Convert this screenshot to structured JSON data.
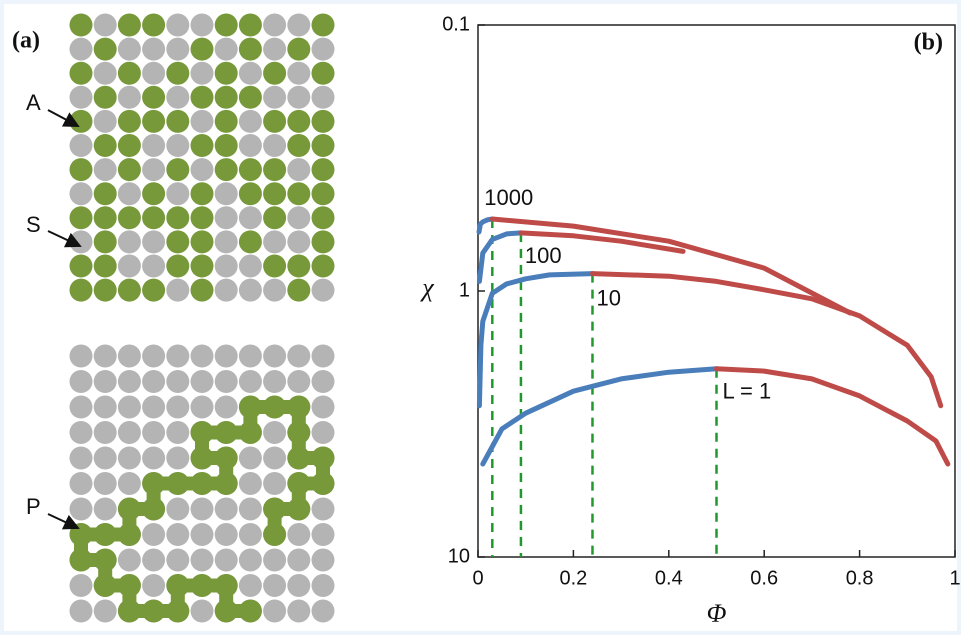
{
  "panel_a": {
    "label": "(a)",
    "markers": [
      "A",
      "S",
      "P"
    ]
  },
  "chart_data": {
    "type": "line",
    "panel_label": "(b)",
    "x_label": "Φ",
    "y_label": "χ",
    "xlim": [
      0,
      1
    ],
    "xticks": [
      0,
      0.2,
      0.4,
      0.6,
      0.8,
      1
    ],
    "ylim": [
      0.1,
      10
    ],
    "yticks": [
      0.1,
      1,
      10
    ],
    "y_scale": "log",
    "y_inverted": true,
    "critical_line_color": "#1f9a2a",
    "curves": [
      {
        "label": "1000",
        "critical": 0.03,
        "branches": [
          {
            "color": "#4a7ebb",
            "x": [
              0.002,
              0.005,
              0.01,
              0.02,
              0.03
            ],
            "values": [
              0.6,
              0.56,
              0.55,
              0.54,
              0.536
            ]
          },
          {
            "color": "#be4b48",
            "x": [
              0.03,
              0.2,
              0.4,
              0.6,
              0.78
            ],
            "values": [
              0.536,
              0.57,
              0.65,
              0.82,
              1.21
            ]
          }
        ]
      },
      {
        "label": "100",
        "critical": 0.09,
        "branches": [
          {
            "color": "#4a7ebb",
            "x": [
              0.003,
              0.01,
              0.03,
              0.06,
              0.09
            ],
            "values": [
              0.92,
              0.72,
              0.64,
              0.61,
              0.605
            ]
          },
          {
            "color": "#be4b48",
            "x": [
              0.09,
              0.2,
              0.3,
              0.43
            ],
            "values": [
              0.605,
              0.62,
              0.65,
              0.71
            ]
          }
        ]
      },
      {
        "label": "10",
        "critical": 0.24,
        "branches": [
          {
            "color": "#4a7ebb",
            "x": [
              0.003,
              0.006,
              0.01,
              0.03,
              0.06,
              0.1,
              0.15,
              0.24
            ],
            "values": [
              2.7,
              1.6,
              1.3,
              1.02,
              0.94,
              0.9,
              0.87,
              0.86
            ]
          },
          {
            "color": "#be4b48",
            "x": [
              0.24,
              0.4,
              0.5,
              0.6,
              0.7,
              0.8,
              0.9,
              0.95,
              0.97
            ],
            "values": [
              0.86,
              0.88,
              0.92,
              0.99,
              1.07,
              1.24,
              1.6,
              2.1,
              2.7
            ]
          }
        ]
      },
      {
        "label": "L = 1",
        "critical": 0.5,
        "branches": [
          {
            "color": "#4a7ebb",
            "x": [
              0.01,
              0.05,
              0.1,
              0.2,
              0.3,
              0.4,
              0.5
            ],
            "values": [
              4.47,
              3.3,
              2.88,
              2.38,
              2.14,
              2.02,
              1.96
            ]
          },
          {
            "color": "#be4b48",
            "x": [
              0.5,
              0.6,
              0.7,
              0.8,
              0.9,
              0.96,
              0.985
            ],
            "values": [
              1.96,
              2.0,
              2.14,
              2.48,
              3.08,
              3.66,
              4.47
            ]
          }
        ]
      }
    ]
  }
}
